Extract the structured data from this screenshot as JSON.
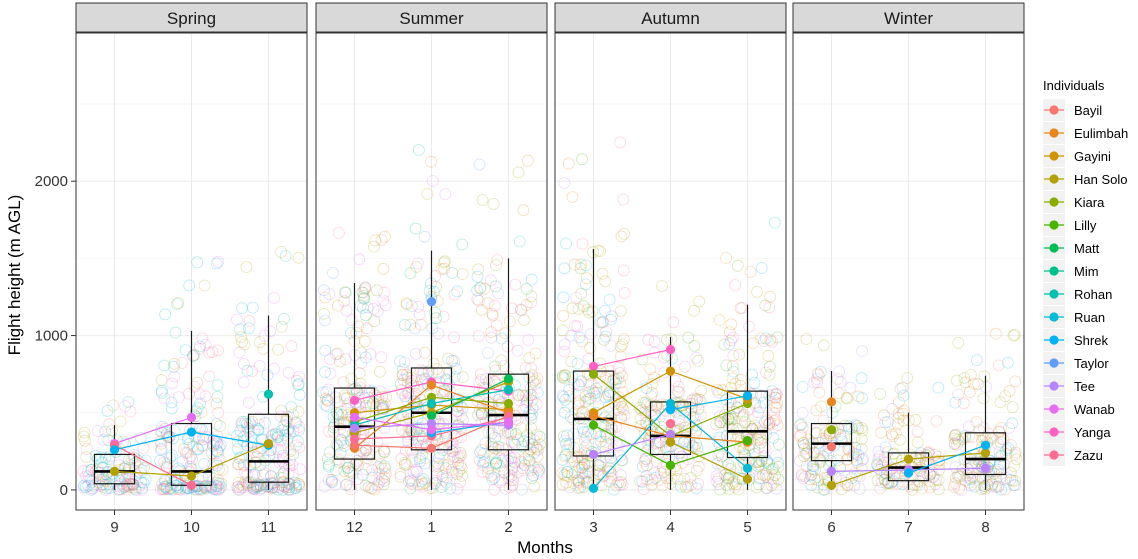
{
  "chart_data": {
    "type": "scatter",
    "xlabel": "Months",
    "ylabel": "Flight height (m AGL)",
    "ylim": [
      -130,
      2960
    ],
    "yticks": [
      0,
      1000,
      2000
    ],
    "grid": true,
    "legend_title": "Individuals",
    "legend_position": "right",
    "series": [
      {
        "name": "Bayil",
        "color": "#F8766D"
      },
      {
        "name": "Eulimbah",
        "color": "#E7851E"
      },
      {
        "name": "Gayini",
        "color": "#D09400"
      },
      {
        "name": "Han Solo",
        "color": "#B2A100"
      },
      {
        "name": "Kiara",
        "color": "#89AC00"
      },
      {
        "name": "Lilly",
        "color": "#45B500"
      },
      {
        "name": "Matt",
        "color": "#00BC51"
      },
      {
        "name": "Mim",
        "color": "#00C087"
      },
      {
        "name": "Rohan",
        "color": "#00C0B2"
      },
      {
        "name": "Ruan",
        "color": "#00BCD6"
      },
      {
        "name": "Shrek",
        "color": "#00B3F2"
      },
      {
        "name": "Taylor",
        "color": "#619CFF"
      },
      {
        "name": "Tee",
        "color": "#B983FF"
      },
      {
        "name": "Wanab",
        "color": "#E76BF3"
      },
      {
        "name": "Yanga",
        "color": "#FF61C3"
      },
      {
        "name": "Zazu",
        "color": "#FF6C91"
      }
    ],
    "facets": [
      {
        "name": "Spring",
        "months": [
          "9",
          "10",
          "11"
        ],
        "boxes": [
          {
            "month": "9",
            "min": 0,
            "q1": 40,
            "median": 120,
            "q3": 230,
            "max": 420
          },
          {
            "month": "10",
            "min": 0,
            "q1": 30,
            "median": 120,
            "q3": 430,
            "max": 1030
          },
          {
            "month": "11",
            "min": 0,
            "q1": 50,
            "median": 185,
            "q3": 490,
            "max": 1130
          }
        ],
        "individual_medians": [
          {
            "name": "Wanab",
            "values": {
              "9": 300,
              "10": 470
            }
          },
          {
            "name": "Zazu",
            "values": {
              "9": 290,
              "10": 30
            }
          },
          {
            "name": "Shrek",
            "values": {
              "9": 260,
              "10": 375,
              "11": 290
            }
          },
          {
            "name": "Han Solo",
            "values": {
              "9": 120,
              "10": 90,
              "11": 300
            }
          },
          {
            "name": "Rohan",
            "values": {
              "11": 620
            }
          }
        ]
      },
      {
        "name": "Summer",
        "months": [
          "12",
          "1",
          "2"
        ],
        "boxes": [
          {
            "month": "12",
            "min": 0,
            "q1": 200,
            "median": 410,
            "q3": 660,
            "max": 1340
          },
          {
            "month": "1",
            "min": 0,
            "q1": 260,
            "median": 500,
            "q3": 790,
            "max": 1550
          },
          {
            "month": "2",
            "min": 0,
            "q1": 260,
            "median": 485,
            "q3": 750,
            "max": 1500
          }
        ],
        "individual_medians": [
          {
            "name": "Yanga",
            "values": {
              "12": 580,
              "1": 700,
              "2": 640
            }
          },
          {
            "name": "Gayini",
            "values": {
              "12": 500,
              "1": 550,
              "2": 520
            }
          },
          {
            "name": "Han Solo",
            "values": {
              "12": 370,
              "1": 500,
              "2": 700
            }
          },
          {
            "name": "Eulimbah",
            "values": {
              "12": 270,
              "1": 680,
              "2": 500
            }
          },
          {
            "name": "Bayil",
            "values": {
              "12": 290,
              "1": 270,
              "2": 480
            }
          },
          {
            "name": "Zazu",
            "values": {
              "12": 330,
              "1": 350,
              "2": 470
            }
          },
          {
            "name": "Kiara",
            "values": {
              "12": 440,
              "1": 600,
              "2": 560
            }
          },
          {
            "name": "Matt",
            "values": {
              "1": 480,
              "2": 720
            }
          },
          {
            "name": "Rohan",
            "values": {
              "12": 420,
              "1": 560,
              "2": 650
            }
          },
          {
            "name": "Shrek",
            "values": {
              "1": 370,
              "2": 440
            }
          },
          {
            "name": "Taylor",
            "values": {
              "1": 1220
            }
          },
          {
            "name": "Tee",
            "values": {
              "12": 400,
              "1": 430,
              "2": 420
            }
          },
          {
            "name": "Wanab",
            "values": {
              "12": 470,
              "1": 390,
              "2": 440
            }
          }
        ]
      },
      {
        "name": "Autumn",
        "months": [
          "3",
          "4",
          "5"
        ],
        "boxes": [
          {
            "month": "3",
            "min": 0,
            "q1": 220,
            "median": 460,
            "q3": 770,
            "max": 1560
          },
          {
            "month": "4",
            "min": 0,
            "q1": 230,
            "median": 350,
            "q3": 570,
            "max": 990
          },
          {
            "month": "5",
            "min": 0,
            "q1": 210,
            "median": 380,
            "q3": 640,
            "max": 1200
          }
        ],
        "individual_medians": [
          {
            "name": "Yanga",
            "values": {
              "3": 800,
              "4": 910
            }
          },
          {
            "name": "Kiara",
            "values": {
              "3": 750,
              "4": 350,
              "5": 560
            }
          },
          {
            "name": "Gayini",
            "values": {
              "3": 500,
              "4": 770,
              "5": 590
            }
          },
          {
            "name": "Eulimbah",
            "values": {
              "3": 480,
              "4": 350,
              "5": 310
            }
          },
          {
            "name": "Lilly",
            "values": {
              "3": 420,
              "4": 160,
              "5": 320
            }
          },
          {
            "name": "Ruan",
            "values": {
              "3": 10,
              "4": 560,
              "5": 140
            }
          },
          {
            "name": "Tee",
            "values": {
              "3": 230,
              "4": 360
            }
          },
          {
            "name": "Han Solo",
            "values": {
              "4": 310,
              "5": 70
            }
          },
          {
            "name": "Zazu",
            "values": {
              "4": 430
            }
          },
          {
            "name": "Shrek",
            "values": {
              "4": 520,
              "5": 610
            }
          }
        ]
      },
      {
        "name": "Winter",
        "months": [
          "6",
          "7",
          "8"
        ],
        "boxes": [
          {
            "month": "6",
            "min": 0,
            "q1": 190,
            "median": 300,
            "q3": 430,
            "max": 770
          },
          {
            "month": "7",
            "min": 0,
            "q1": 60,
            "median": 145,
            "q3": 240,
            "max": 500
          },
          {
            "month": "8",
            "min": 0,
            "q1": 100,
            "median": 200,
            "q3": 370,
            "max": 740
          }
        ],
        "individual_medians": [
          {
            "name": "Eulimbah",
            "values": {
              "6": 570
            }
          },
          {
            "name": "Kiara",
            "values": {
              "6": 390
            }
          },
          {
            "name": "Bayil",
            "values": {
              "6": 280
            }
          },
          {
            "name": "Han Solo",
            "values": {
              "6": 30,
              "7": 200,
              "8": 240
            }
          },
          {
            "name": "Tee",
            "values": {
              "6": 120,
              "7": 130,
              "8": 140
            }
          },
          {
            "name": "Shrek",
            "values": {
              "7": 110,
              "8": 290
            }
          }
        ]
      }
    ]
  }
}
